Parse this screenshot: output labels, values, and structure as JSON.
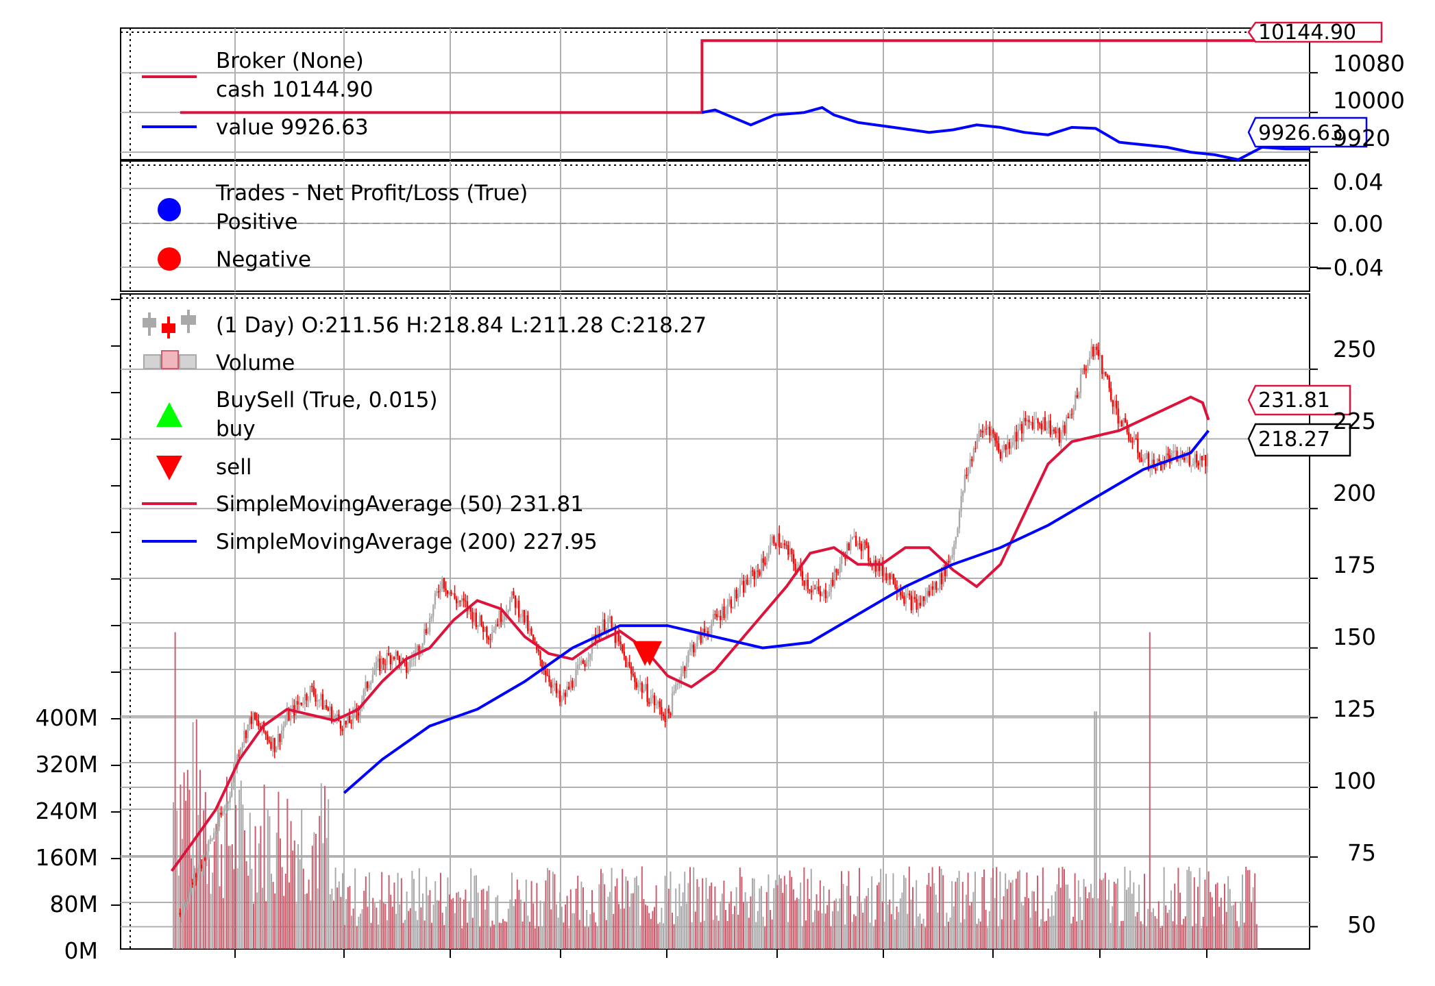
{
  "colors": {
    "cash": "#dc143c",
    "value": "#0000ff",
    "sma50": "#dc143c",
    "sma200": "#0000ff",
    "candle_up": "#a9a9a9",
    "candle_down": "#ff0000",
    "volume_up": "#a9a9a9",
    "volume_down": "#cd5c6c",
    "positive": "#0000ff",
    "negative": "#ff0000",
    "buy": "#00ff00",
    "sell": "#ff0000",
    "grid": "#b0b0b0"
  },
  "broker_panel": {
    "legend": {
      "title": "Broker (None)",
      "cash_label": "cash 10144.90",
      "value_label": "value 9926.63"
    },
    "tags": {
      "cash": "10144.90",
      "value": "9926.63"
    },
    "yticks": [
      "10080",
      "10000",
      "9920"
    ],
    "chart_data": {
      "type": "line",
      "ylim": [
        9905,
        10170
      ],
      "xlim": [
        0,
        1000
      ],
      "series": [
        {
          "name": "cash 10144.90",
          "x": [
            50,
            489,
            489,
            1000
          ],
          "values": [
            10000,
            10000,
            10144.9,
            10144.9
          ]
        },
        {
          "name": "value 9926.63",
          "x": [
            489,
            500,
            510,
            530,
            550,
            575,
            590,
            600,
            620,
            650,
            680,
            700,
            720,
            740,
            760,
            780,
            800,
            820,
            840,
            860,
            880,
            900,
            920,
            940,
            960,
            980,
            1000
          ],
          "values": [
            10000,
            10005,
            9995,
            9975,
            9995,
            10000,
            10010,
            9995,
            9980,
            9970,
            9960,
            9965,
            9975,
            9970,
            9960,
            9955,
            9970,
            9968,
            9940,
            9935,
            9930,
            9920,
            9915,
            9905,
            9930,
            9926.63,
            9926.63
          ]
        }
      ]
    }
  },
  "trades_panel": {
    "legend": {
      "title": "Trades - Net Profit/Loss (True)",
      "positive": "Positive",
      "negative": "Negative"
    },
    "yticks": [
      "0.04",
      "0.00",
      "−0.04"
    ],
    "chart_data": {
      "type": "scatter",
      "ylim": [
        -0.06,
        0.06
      ],
      "series": []
    }
  },
  "price_panel": {
    "legend": {
      "ohlc": " (1 Day) O:211.56 H:218.84 L:211.28 C:218.27",
      "volume": "Volume",
      "buysell": "BuySell (True, 0.015)",
      "buy": "buy",
      "sell": "sell",
      "sma50": "SimpleMovingAverage (50) 231.81",
      "sma200": "SimpleMovingAverage (200) 227.95"
    },
    "tags": {
      "sma50": "231.81",
      "close": "218.27"
    },
    "yticks_right": [
      "250",
      "225",
      "200",
      "175",
      "150",
      "125",
      "100",
      "75",
      "50"
    ],
    "yticks_left": [
      "400M",
      "320M",
      "240M",
      "160M",
      "80M",
      "0M"
    ],
    "chart_data": {
      "type": "line",
      "xlim": [
        0,
        1000
      ],
      "ylim": [
        42,
        277
      ],
      "volume_ylim": [
        0,
        800
      ],
      "close_path": {
        "x": [
          50,
          60,
          70,
          80,
          90,
          100,
          110,
          120,
          130,
          140,
          150,
          160,
          170,
          180,
          190,
          200,
          210,
          220,
          230,
          240,
          250,
          260,
          270,
          280,
          290,
          300,
          310,
          320,
          330,
          340,
          350,
          360,
          370,
          380,
          390,
          400,
          410,
          420,
          430,
          440,
          450,
          460,
          470,
          480,
          490,
          500,
          510,
          520,
          530,
          540,
          550,
          560,
          570,
          580,
          590,
          600,
          610,
          620,
          630,
          640,
          650,
          660,
          670,
          680,
          690,
          700,
          710,
          720,
          730,
          740,
          750,
          760,
          770,
          780,
          790,
          800,
          810,
          820,
          830,
          840,
          850,
          860,
          870,
          880,
          890,
          900,
          910,
          920,
          930,
          940,
          950,
          960,
          970,
          980,
          990,
          1000
        ],
        "values": [
          55,
          65,
          75,
          85,
          95,
          115,
          125,
          120,
          115,
          125,
          130,
          135,
          130,
          125,
          122,
          128,
          140,
          145,
          148,
          142,
          150,
          160,
          175,
          168,
          165,
          160,
          155,
          162,
          168,
          160,
          148,
          140,
          130,
          138,
          145,
          155,
          160,
          150,
          140,
          135,
          130,
          125,
          140,
          150,
          155,
          160,
          165,
          170,
          175,
          180,
          190,
          185,
          178,
          172,
          168,
          175,
          185,
          190,
          182,
          178,
          175,
          168,
          165,
          170,
          175,
          185,
          210,
          225,
          230,
          220,
          225,
          230,
          232,
          230,
          225,
          235,
          250,
          258,
          245,
          232,
          225,
          218,
          215,
          218,
          218,
          218,
          218,
          218,
          218,
          218,
          218,
          218,
          218,
          218,
          218,
          218
        ]
      },
      "series": [
        {
          "name": "SimpleMovingAverage (50) 231.81",
          "x": [
            43,
            60,
            80,
            100,
            120,
            140,
            160,
            180,
            200,
            220,
            240,
            260,
            280,
            300,
            320,
            340,
            360,
            380,
            400,
            420,
            440,
            460,
            480,
            500,
            520,
            540,
            560,
            580,
            600,
            620,
            640,
            660,
            680,
            700,
            720,
            740,
            760,
            780,
            800,
            820,
            840,
            860,
            880,
            900,
            910,
            915
          ],
          "values": [
            70,
            80,
            92,
            110,
            122,
            128,
            126,
            124,
            128,
            138,
            146,
            150,
            160,
            167,
            164,
            154,
            148,
            146,
            152,
            156,
            150,
            140,
            136,
            142,
            152,
            162,
            172,
            184,
            186,
            180,
            180,
            186,
            186,
            178,
            172,
            180,
            198,
            216,
            224,
            226,
            228,
            232,
            236,
            240,
            238,
            231.81
          ]
        },
        {
          "name": "SimpleMovingAverage (200) 227.95",
          "x": [
            188,
            220,
            260,
            300,
            340,
            380,
            420,
            460,
            500,
            540,
            580,
            620,
            660,
            700,
            740,
            780,
            820,
            860,
            900,
            915
          ],
          "values": [
            98,
            110,
            122,
            128,
            138,
            150,
            158,
            158,
            154,
            150,
            152,
            162,
            172,
            180,
            186,
            194,
            204,
            214,
            220,
            227.95
          ]
        }
      ],
      "sell_markers": [
        {
          "x": 441,
          "value": 148
        },
        {
          "x": 445,
          "value": 148
        }
      ]
    }
  }
}
